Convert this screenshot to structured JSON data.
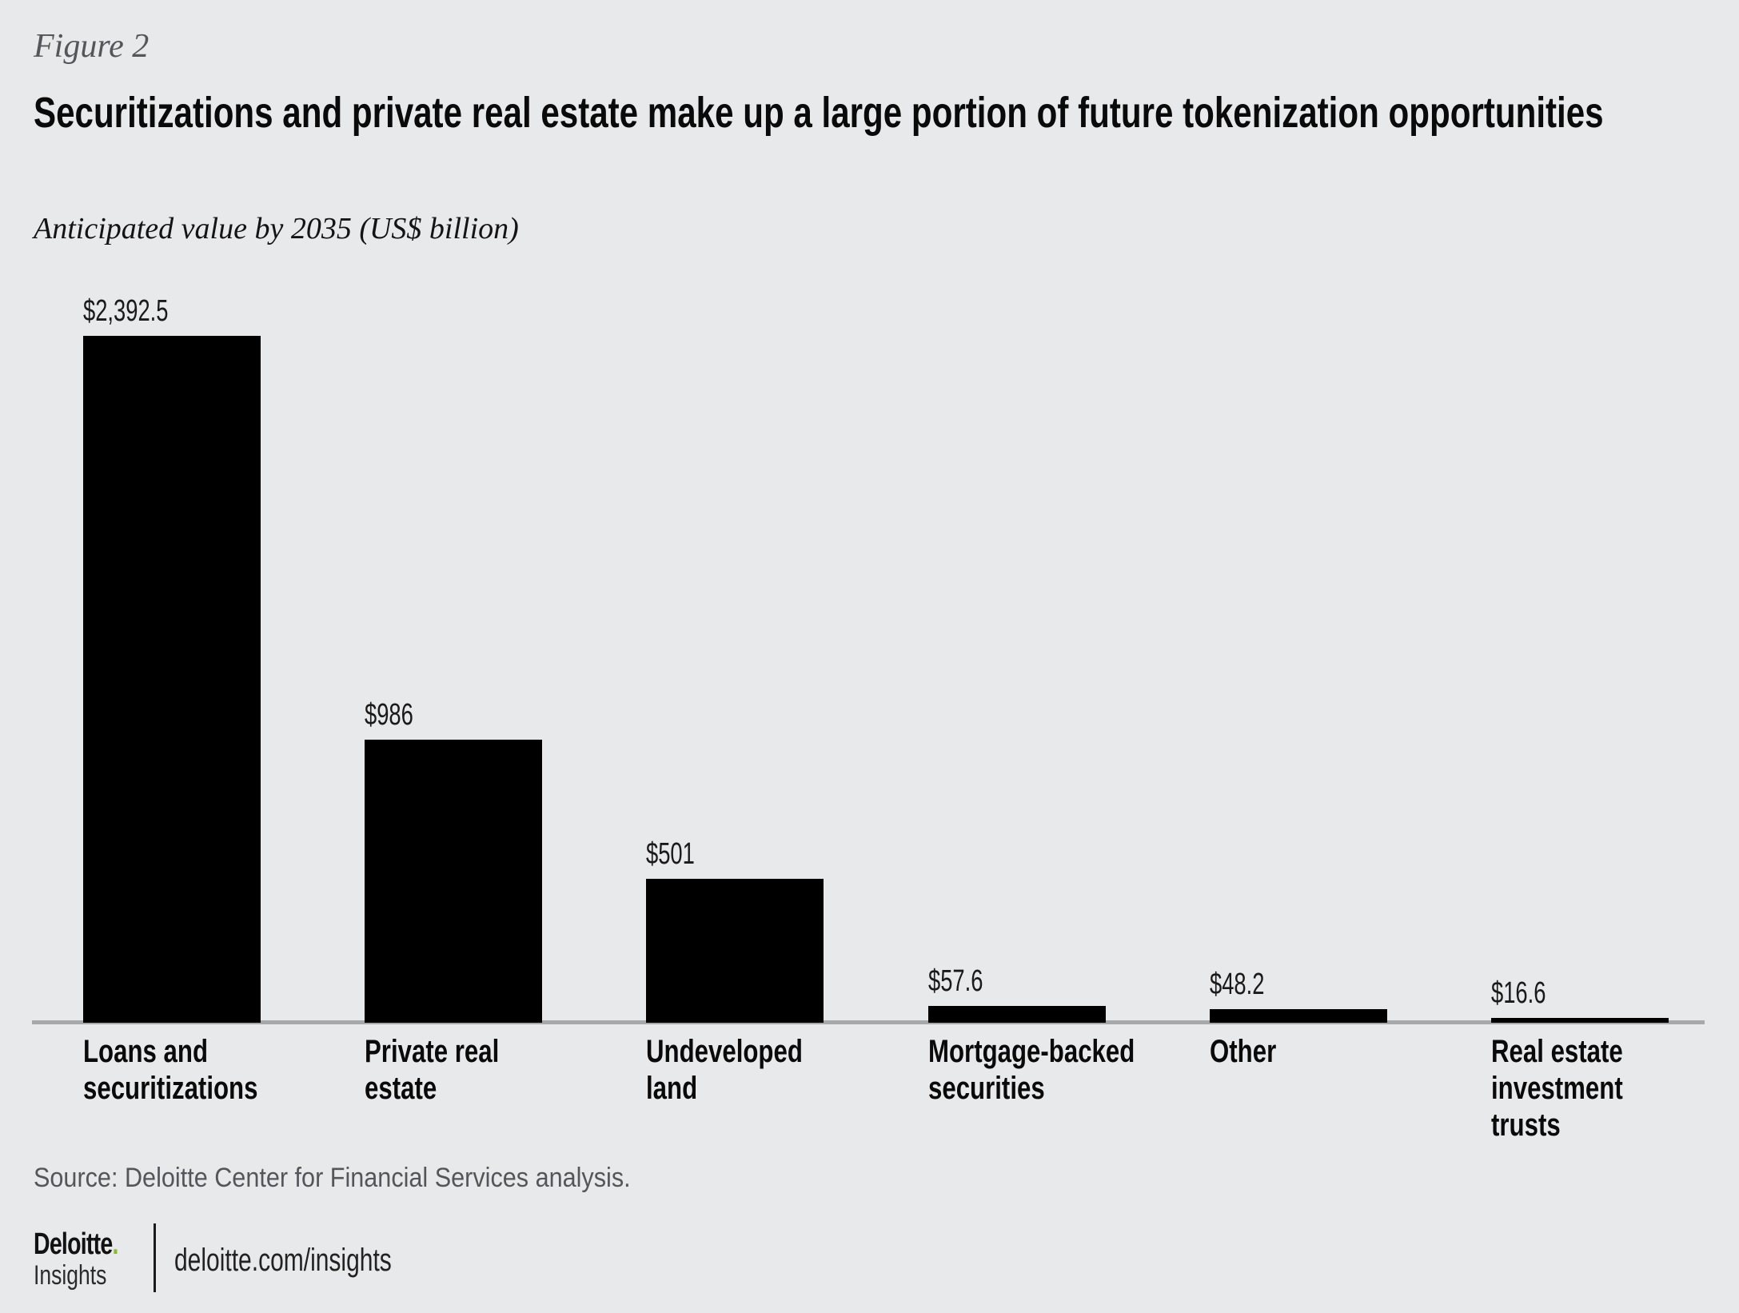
{
  "figure_label": "Figure 2",
  "subtitle": "Anticipated value by 2035 (US$ billion)",
  "source": "Source: Deloitte Center for Financial Services analysis.",
  "chart_data": {
    "type": "bar",
    "title": "Securitizations and private real estate make up a large portion of future tokenization opportunities",
    "subtitle": "Anticipated value by 2035 (US$ billion)",
    "unit": "US$ billion",
    "categories": [
      "Loans and\nsecuritizations",
      "Private real\nestate",
      "Undeveloped\nland",
      "Mortgage-backed\nsecurities",
      "Other",
      "Real estate\ninvestment trusts"
    ],
    "values": [
      2392.5,
      986,
      501,
      57.6,
      48.2,
      16.6
    ],
    "value_labels": [
      "$2,392.5",
      "$986",
      "$501",
      "$57.6",
      "$48.2",
      "$16.6"
    ],
    "xlabel": "",
    "ylabel": "",
    "ylim": [
      0,
      2500
    ],
    "grid": false,
    "legend_position": "none",
    "value_label_position": "above-bar-left",
    "bar_color": "#000000",
    "baseline_color": "#a7a8aa",
    "background_color": "#e8e9ea"
  },
  "footer": {
    "brand_name": "Deloitte",
    "brand_dot": ".",
    "brand_sub": "Insights",
    "url": "deloitte.com/insights",
    "accent_green": "#86bc25"
  }
}
